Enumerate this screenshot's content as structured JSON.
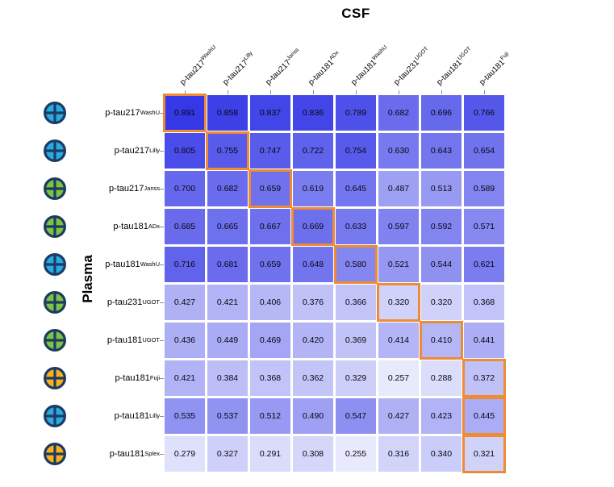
{
  "title": "CSF",
  "chart_data": {
    "type": "heatmap",
    "title": "CSF",
    "xlabel": "",
    "ylabel": "Plasma",
    "legend_position": "none",
    "grid": "white-gaps-between-cells",
    "columns": [
      {
        "name": "p-tau217",
        "sup": "WashU"
      },
      {
        "name": "p-tau217",
        "sup": "Lilly"
      },
      {
        "name": "p-tau217",
        "sup": "Janss"
      },
      {
        "name": "p-tau181",
        "sup": "ADx"
      },
      {
        "name": "p-tau181",
        "sup": "WashU"
      },
      {
        "name": "p-tau231",
        "sup": "UGOT"
      },
      {
        "name": "p-tau181",
        "sup": "UGOT"
      },
      {
        "name": "p-tau181",
        "sup": "Fuji"
      }
    ],
    "rows": [
      {
        "name": "p-tau217",
        "sup": "WashU",
        "marker": "blue"
      },
      {
        "name": "p-tau217",
        "sup": "Lilly",
        "marker": "blue"
      },
      {
        "name": "p-tau217",
        "sup": "Janss",
        "marker": "green"
      },
      {
        "name": "p-tau181",
        "sup": "ADx",
        "marker": "green"
      },
      {
        "name": "p-tau181",
        "sup": "WashU",
        "marker": "blue"
      },
      {
        "name": "p-tau231",
        "sup": "UGOT",
        "marker": "green"
      },
      {
        "name": "p-tau181",
        "sup": "UGOT",
        "marker": "green"
      },
      {
        "name": "p-tau181",
        "sup": "Fuji",
        "marker": "orange"
      },
      {
        "name": "p-tau181",
        "sup": "Lilly",
        "marker": "blue"
      },
      {
        "name": "p-tau181",
        "sup": "Splex",
        "marker": "orange"
      }
    ],
    "values": [
      [
        "0.891",
        "0.858",
        "0.837",
        "0.836",
        "0.789",
        "0.682",
        "0.696",
        "0.766"
      ],
      [
        "0.805",
        "0.755",
        "0.747",
        "0.722",
        "0.754",
        "0.630",
        "0.643",
        "0.654"
      ],
      [
        "0.700",
        "0.682",
        "0.659",
        "0.619",
        "0.645",
        "0.487",
        "0.513",
        "0.589"
      ],
      [
        "0.685",
        "0.665",
        "0.667",
        "0.669",
        "0.633",
        "0.597",
        "0.592",
        "0.571"
      ],
      [
        "0.716",
        "0.681",
        "0.659",
        "0.648",
        "0.580",
        "0.521",
        "0.544",
        "0.621"
      ],
      [
        "0.427",
        "0.421",
        "0.406",
        "0.376",
        "0.366",
        "0.320",
        "0.320",
        "0.368"
      ],
      [
        "0.436",
        "0.449",
        "0.469",
        "0.420",
        "0.369",
        "0.414",
        "0.410",
        "0.441"
      ],
      [
        "0.421",
        "0.384",
        "0.368",
        "0.362",
        "0.329",
        "0.257",
        "0.288",
        "0.372"
      ],
      [
        "0.535",
        "0.537",
        "0.512",
        "0.490",
        "0.547",
        "0.427",
        "0.423",
        "0.445"
      ],
      [
        "0.279",
        "0.327",
        "0.291",
        "0.308",
        "0.255",
        "0.316",
        "0.340",
        "0.321"
      ]
    ],
    "highlighted_cells": [
      [
        0,
        0
      ],
      [
        1,
        1
      ],
      [
        2,
        2
      ],
      [
        3,
        3
      ],
      [
        4,
        4
      ],
      [
        5,
        5
      ],
      [
        6,
        6
      ],
      [
        7,
        7
      ],
      [
        8,
        7
      ],
      [
        9,
        7
      ]
    ],
    "colorscale": {
      "min_value": 0.23,
      "max_value": 0.92,
      "min_color": "#F4F5FE",
      "max_color": "#2E31E5",
      "gamma": 0.85
    },
    "highlight_color": "#EE8B33",
    "marker_colors": {
      "blue": "#29ABE2",
      "green": "#7DC242",
      "orange": "#F8B11A",
      "stroke": "#1C3B63"
    }
  }
}
